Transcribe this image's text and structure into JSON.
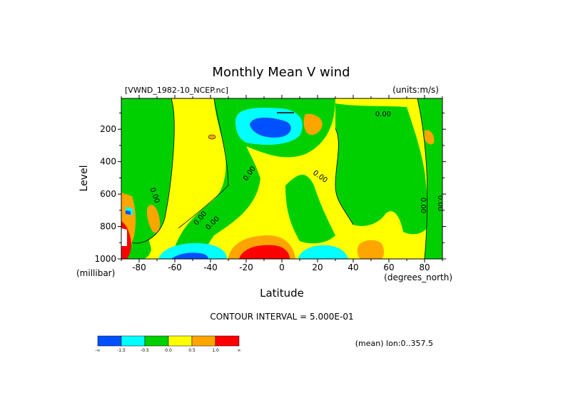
{
  "chart_data": {
    "type": "heatmap",
    "title": "Monthly Mean V wind",
    "dataset": "[VWND_1982-10_NCEP.nc]",
    "units": "(units:m/s)",
    "xlabel": "Latitude",
    "x_units": "(degrees_north)",
    "ylabel": "Level",
    "y_units": "(millibar)",
    "xlim": [
      -90,
      90
    ],
    "ylim": [
      1000,
      10
    ],
    "x_ticks": [
      -80,
      -60,
      -40,
      -20,
      0,
      20,
      40,
      60,
      80
    ],
    "y_ticks": [
      200,
      400,
      600,
      800,
      1000
    ],
    "contour_interval_text": "CONTOUR INTERVAL = 5.000E-01",
    "mean_note": "(mean) lon:0..357.5",
    "colorbar": {
      "colors": [
        "#0050ff",
        "#00ffff",
        "#00d000",
        "#ffff00",
        "#ffa500",
        "#ff0000"
      ],
      "labels": [
        "-∞",
        "-1.5",
        "-0.5",
        "0.0",
        "0.5",
        "1.0",
        "∞"
      ]
    },
    "contour_labels": [
      "0.00",
      "0.00",
      "0.00",
      "0.00",
      "0.00",
      "0.00",
      "0.00",
      "0.00",
      "0.00"
    ],
    "features": [
      {
        "type": "min",
        "lat": -12,
        "level": 200,
        "value": -2.0
      },
      {
        "type": "max",
        "lat": -12,
        "level": 980,
        "value": 2.0
      },
      {
        "type": "min",
        "lat": -55,
        "level": 980,
        "value": -1.8
      },
      {
        "type": "min",
        "lat": 25,
        "level": 970,
        "value": -1.0
      },
      {
        "type": "max",
        "lat": 55,
        "level": 960,
        "value": 0.8
      },
      {
        "type": "max",
        "lat": 18,
        "level": 170,
        "value": 0.8
      },
      {
        "type": "max",
        "lat": -88,
        "level": 960,
        "value": 2.0
      }
    ]
  }
}
